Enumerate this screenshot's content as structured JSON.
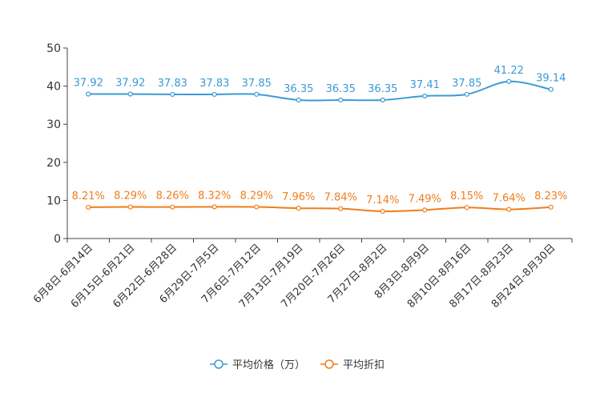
{
  "chart_data": {
    "type": "line",
    "categories": [
      "6月8日-6月14日",
      "6月15日-6月21日",
      "6月22日-6月28日",
      "6月29日-7月5日",
      "7月6日-7月12日",
      "7月13日-7月19日",
      "7月20日-7月26日",
      "7月27日-8月2日",
      "8月3日-8月9日",
      "8月10日-8月16日",
      "8月17日-8月23日",
      "8月24日-8月30日"
    ],
    "ylim": [
      0,
      50
    ],
    "yticks": [
      0,
      10,
      20,
      30,
      40,
      50
    ],
    "series": [
      {
        "name": "平均价格（万）",
        "color": "#3a9ad6",
        "values": [
          37.92,
          37.92,
          37.83,
          37.83,
          37.85,
          36.35,
          36.35,
          36.35,
          37.41,
          37.85,
          41.22,
          39.14
        ],
        "labels": [
          "37.92",
          "37.92",
          "37.83",
          "37.83",
          "37.85",
          "36.35",
          "36.35",
          "36.35",
          "37.41",
          "37.85",
          "41.22",
          "39.14"
        ]
      },
      {
        "name": "平均折扣",
        "color": "#f07d1a",
        "values": [
          8.21,
          8.29,
          8.26,
          8.32,
          8.29,
          7.96,
          7.84,
          7.14,
          7.49,
          8.15,
          7.64,
          8.23
        ],
        "labels": [
          "8.21%",
          "8.29%",
          "8.26%",
          "8.32%",
          "8.29%",
          "7.96%",
          "7.84%",
          "7.14%",
          "7.49%",
          "8.15%",
          "7.64%",
          "8.23%"
        ]
      }
    ],
    "legend_position": "bottom-center",
    "grid": false
  }
}
